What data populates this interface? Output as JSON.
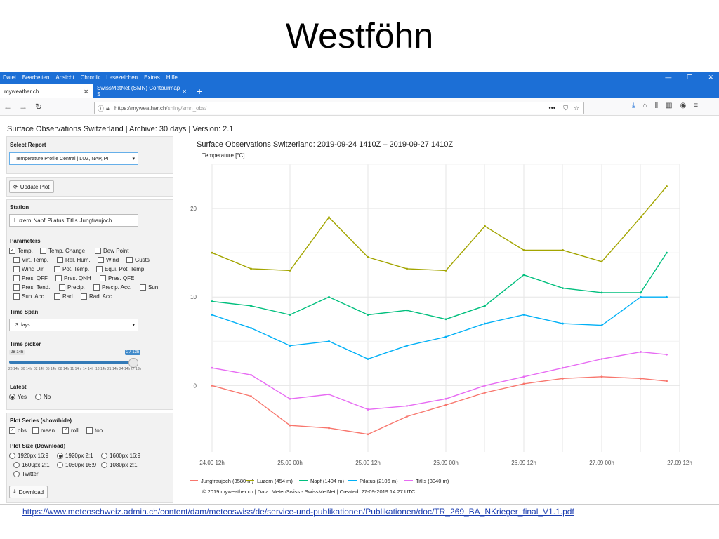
{
  "slide": {
    "title": "Westföhn",
    "source_link": "https://www.meteoschweiz.admin.ch/content/dam/meteoswiss/de/service-und-publikationen/Publikationen/doc/TR_269_BA_NKrieger_final_V1.1.pdf"
  },
  "browser": {
    "menu": [
      "Datei",
      "Bearbeiten",
      "Ansicht",
      "Chronik",
      "Lesezeichen",
      "Extras",
      "Hilfe"
    ],
    "tabs": [
      {
        "label": "myweather.ch",
        "active": true
      },
      {
        "label": "SwissMetNet (SMN) Contourmap S",
        "active": false
      }
    ],
    "url_prefix": "https://myweather.ch",
    "url_rest": "/shiny/smn_obs/",
    "url_dots": "•••",
    "icons": [
      "back-icon",
      "forward-icon",
      "reload-icon",
      "info-icon",
      "lock-icon",
      "pocket-icon",
      "star-icon",
      "download-icon",
      "home-icon",
      "library-icon",
      "sidebar-icon",
      "account-icon",
      "menu-icon"
    ]
  },
  "app": {
    "title": "Surface Observations Switzerland | Archive: 30 days | Version: 2.1"
  },
  "sidebar": {
    "report_label": "Select Report",
    "report_value": "Temperature Profile Central | LUZ, NAP, PI",
    "update_button": "Update Plot",
    "station_label": "Station",
    "stations": [
      "Luzern",
      "Napf",
      "Pilatus",
      "Titlis",
      "Jungfraujoch"
    ],
    "parameters_label": "Parameters",
    "parameters": [
      {
        "label": "Temp.",
        "checked": true
      },
      {
        "label": "Temp. Change",
        "checked": false
      },
      {
        "label": "Dew Point",
        "checked": false
      },
      {
        "label": "Virt. Temp.",
        "checked": false
      },
      {
        "label": "Rel. Hum.",
        "checked": false
      },
      {
        "label": "Wind",
        "checked": false
      },
      {
        "label": "Gusts",
        "checked": false
      },
      {
        "label": "Wind Dir.",
        "checked": false
      },
      {
        "label": "Pot. Temp.",
        "checked": false
      },
      {
        "label": "Equi. Pot. Temp.",
        "checked": false
      },
      {
        "label": "Pres. QFF",
        "checked": false
      },
      {
        "label": "Pres. QNH",
        "checked": false
      },
      {
        "label": "Pres. QFE",
        "checked": false
      },
      {
        "label": "Pres. Tend.",
        "checked": false
      },
      {
        "label": "Precip.",
        "checked": false
      },
      {
        "label": "Precip. Acc.",
        "checked": false
      },
      {
        "label": "Sun.",
        "checked": false
      },
      {
        "label": "Sun. Acc.",
        "checked": false
      },
      {
        "label": "Rad.",
        "checked": false
      },
      {
        "label": "Rad. Acc.",
        "checked": false
      }
    ],
    "timespan_label": "Time Span",
    "timespan_value": "3 days",
    "timepicker_label": "Time picker",
    "timepicker_min": "28 14h",
    "timepicker_max": "27 13h",
    "timepicker_value": 1.0,
    "timepicker_ticks": [
      "28 14h",
      "30 14h",
      "02 14h",
      "05 14h",
      "08 14h",
      "11 14h",
      "14 14h",
      "18 14h",
      "21 14h",
      "24 14h",
      "27 13h"
    ],
    "latest_label": "Latest",
    "latest_options": [
      {
        "label": "Yes",
        "selected": true
      },
      {
        "label": "No",
        "selected": false
      }
    ],
    "series_label": "Plot Series (show/hide)",
    "series_options": [
      {
        "label": "obs",
        "checked": true
      },
      {
        "label": "mean",
        "checked": false
      },
      {
        "label": "roll",
        "checked": true
      },
      {
        "label": "top",
        "checked": false
      }
    ],
    "size_label": "Plot Size (Download)",
    "size_options": [
      {
        "label": "1920px 16:9",
        "selected": false
      },
      {
        "label": "1920px 2:1",
        "selected": true
      },
      {
        "label": "1600px 16:9",
        "selected": false
      },
      {
        "label": "1600px 2:1",
        "selected": false
      },
      {
        "label": "1080px 16:9",
        "selected": false
      },
      {
        "label": "1080px 2:1",
        "selected": false
      },
      {
        "label": "Twitter",
        "selected": false
      }
    ],
    "download_button": "Download"
  },
  "chart_data": {
    "type": "line",
    "title": "Surface Observations Switzerland: 2019-09-24 1410Z – 2019-09-27 1410Z",
    "ylabel": "Temperature [°C]",
    "xlabel": "",
    "x_tick_labels": [
      "24.09 12h",
      "25.09 00h",
      "25.09 12h",
      "26.09 00h",
      "26.09 12h",
      "27.09 00h",
      "27.09 12h"
    ],
    "x_range_hours": [
      0,
      72
    ],
    "x": [
      0,
      6,
      12,
      18,
      24,
      30,
      36,
      42,
      48,
      54,
      60,
      66,
      70
    ],
    "y_ticks": [
      0,
      10,
      20
    ],
    "ylim": [
      -7.5,
      25
    ],
    "grid": true,
    "legend_position": "bottom",
    "series": [
      {
        "name": "Jungfraujoch (3580 m)",
        "color": "#f8766d",
        "values": [
          0.0,
          -1.2,
          -4.5,
          -4.8,
          -5.5,
          -3.5,
          -2.2,
          -0.8,
          0.2,
          0.8,
          1.0,
          0.8,
          0.5
        ]
      },
      {
        "name": "Luzern (454 m)",
        "color": "#a3a500",
        "values": [
          15.0,
          13.2,
          13.0,
          19.0,
          14.5,
          13.2,
          13.0,
          18.0,
          15.3,
          15.3,
          14.0,
          19.0,
          22.5
        ]
      },
      {
        "name": "Napf (1404 m)",
        "color": "#00bf7d",
        "values": [
          9.5,
          9.0,
          8.0,
          10.0,
          8.0,
          8.5,
          7.5,
          9.0,
          12.5,
          11.0,
          10.5,
          10.5,
          15.0
        ]
      },
      {
        "name": "Pilatus (2106 m)",
        "color": "#00b0f6",
        "values": [
          8.0,
          6.5,
          4.5,
          5.0,
          3.0,
          4.5,
          5.5,
          7.0,
          8.0,
          7.0,
          6.8,
          10.0,
          10.0
        ]
      },
      {
        "name": "Titlis (3040 m)",
        "color": "#e76bf3",
        "values": [
          2.0,
          1.2,
          -1.5,
          -1.0,
          -2.7,
          -2.3,
          -1.5,
          0.0,
          1.0,
          2.0,
          3.0,
          3.8,
          3.5
        ]
      }
    ],
    "caption": "© 2019 myweather.ch | Data: MeteoSwiss - SwissMetNet | Created: 27-09-2019 14:27 UTC"
  }
}
